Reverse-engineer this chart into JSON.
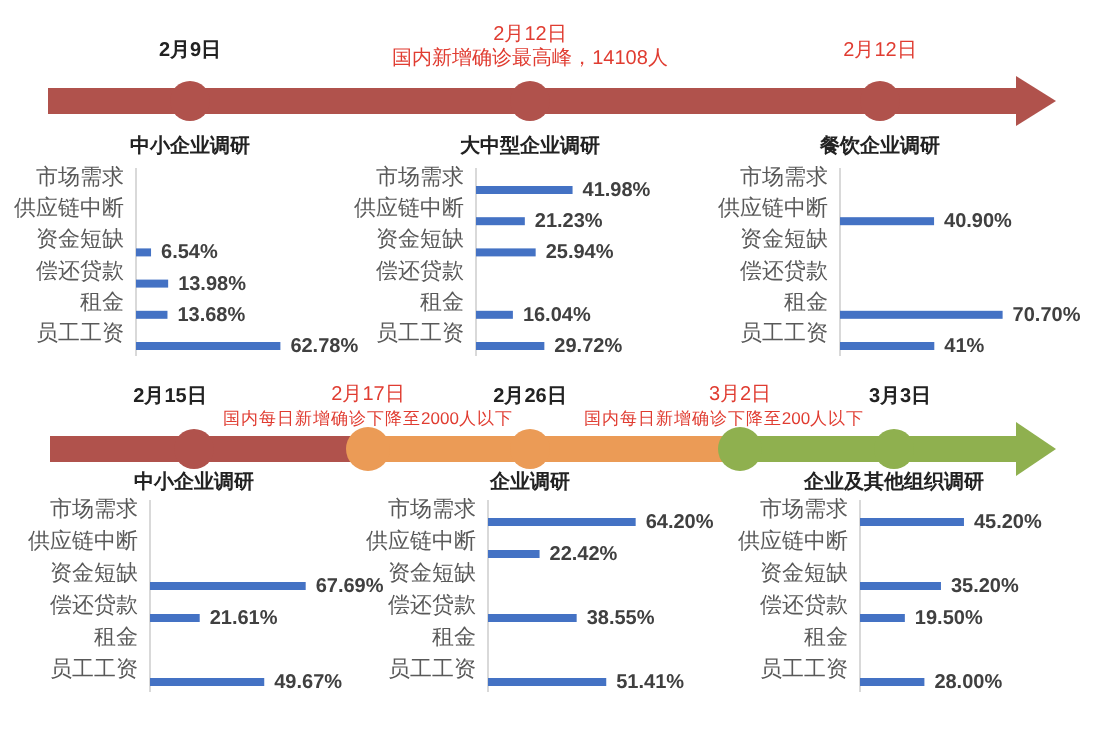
{
  "chart_data": [
    {
      "type": "bar",
      "orientation": "horizontal",
      "title": "中小企业调研",
      "categories": [
        "市场需求",
        "供应链中断",
        "资金短缺",
        "偿还贷款",
        "租金",
        "员工工资"
      ],
      "values": [
        null,
        null,
        6.54,
        13.98,
        13.68,
        62.78
      ],
      "value_labels": [
        null,
        null,
        "6.54%",
        "13.98%",
        "13.68%",
        "62.78%"
      ],
      "color": "#4472c4",
      "annotations": [
        "2月9日"
      ]
    },
    {
      "type": "bar",
      "orientation": "horizontal",
      "title": "大中型企业调研",
      "categories": [
        "市场需求",
        "供应链中断",
        "资金短缺",
        "偿还贷款",
        "租金",
        "员工工资"
      ],
      "values": [
        41.98,
        21.23,
        25.94,
        null,
        16.04,
        29.72
      ],
      "value_labels": [
        "41.98%",
        "21.23%",
        "25.94%",
        null,
        "16.04%",
        "29.72%"
      ],
      "color": "#4472c4",
      "annotations": [
        "2月12日",
        "国内新增确诊最高峰，14108人"
      ]
    },
    {
      "type": "bar",
      "orientation": "horizontal",
      "title": "餐饮企业调研",
      "categories": [
        "市场需求",
        "供应链中断",
        "资金短缺",
        "偿还贷款",
        "租金",
        "员工工资"
      ],
      "values": [
        null,
        40.9,
        null,
        null,
        70.7,
        41
      ],
      "value_labels": [
        null,
        "40.90%",
        null,
        null,
        "70.70%",
        "41%"
      ],
      "color": "#4472c4",
      "annotations": [
        "2月12日"
      ]
    },
    {
      "type": "bar",
      "orientation": "horizontal",
      "title": "中小企业调研",
      "categories": [
        "市场需求",
        "供应链中断",
        "资金短缺",
        "偿还贷款",
        "租金",
        "员工工资"
      ],
      "values": [
        null,
        null,
        67.69,
        21.61,
        null,
        49.67
      ],
      "value_labels": [
        null,
        null,
        "67.69%",
        "21.61%",
        null,
        "49.67%"
      ],
      "color": "#4472c4",
      "annotations": [
        "2月15日",
        "2月17日",
        "国内每日新增确诊下降至2000人以下"
      ]
    },
    {
      "type": "bar",
      "orientation": "horizontal",
      "title": "企业调研",
      "categories": [
        "市场需求",
        "供应链中断",
        "资金短缺",
        "偿还贷款",
        "租金",
        "员工工资"
      ],
      "values": [
        64.2,
        22.42,
        null,
        38.55,
        null,
        51.41
      ],
      "value_labels": [
        "64.20%",
        "22.42%",
        null,
        "38.55%",
        null,
        "51.41%"
      ],
      "color": "#4472c4",
      "annotations": [
        "2月26日",
        "3月2日",
        "国内每日新增确诊下降至200人以下"
      ]
    },
    {
      "type": "bar",
      "orientation": "horizontal",
      "title": "企业及其他组织调研",
      "categories": [
        "市场需求",
        "供应链中断",
        "资金短缺",
        "偿还贷款",
        "租金",
        "员工工资"
      ],
      "values": [
        45.2,
        null,
        35.2,
        19.5,
        null,
        28.0
      ],
      "value_labels": [
        "45.20%",
        null,
        "35.20%",
        "19.50%",
        null,
        "28.00%"
      ],
      "color": "#4472c4",
      "annotations": [
        "3月3日"
      ]
    }
  ]
}
